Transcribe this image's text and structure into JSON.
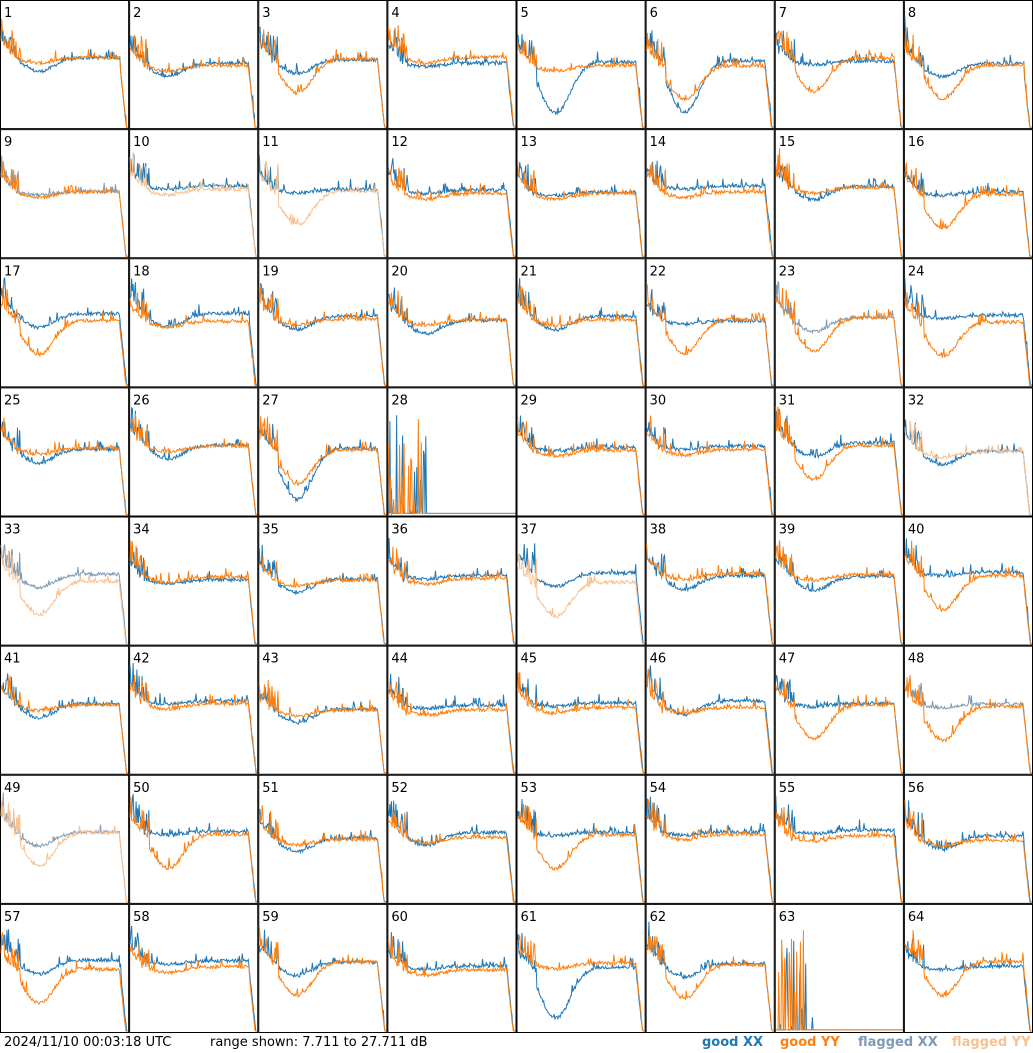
{
  "chart_data": {
    "type": "line",
    "layout": "8x8 small multiples",
    "panels": [
      "1",
      "2",
      "3",
      "4",
      "5",
      "6",
      "7",
      "8",
      "9",
      "10",
      "11",
      "12",
      "13",
      "14",
      "15",
      "16",
      "17",
      "18",
      "19",
      "20",
      "21",
      "22",
      "23",
      "24",
      "25",
      "26",
      "27",
      "28",
      "29",
      "30",
      "31",
      "32",
      "33",
      "34",
      "35",
      "36",
      "37",
      "38",
      "39",
      "40",
      "41",
      "42",
      "43",
      "44",
      "45",
      "46",
      "47",
      "48",
      "49",
      "50",
      "51",
      "52",
      "53",
      "54",
      "55",
      "56",
      "57",
      "58",
      "59",
      "60",
      "61",
      "62",
      "63",
      "64"
    ],
    "panel_status": {
      "flagged_xx": [
        "9",
        "23",
        "33",
        "48",
        "49"
      ],
      "flagged_yy": [
        "10",
        "11",
        "32",
        "33",
        "37",
        "49"
      ],
      "dead": [
        "28",
        "63"
      ],
      "low_x": [
        "5",
        "6",
        "61",
        "27"
      ]
    },
    "ylim_db": [
      7.711,
      27.711
    ],
    "series": [
      {
        "name": "good XX",
        "color": "#1f77b4"
      },
      {
        "name": "good YY",
        "color": "#ff7f0e"
      },
      {
        "name": "flagged XX",
        "color": "#7f9bb5"
      },
      {
        "name": "flagged YY",
        "color": "#f8c192"
      }
    ]
  },
  "footer": {
    "timestamp": "2024/11/10 00:03:18 UTC",
    "range_text": "range shown: 7.711 to 27.711 dB"
  },
  "legend": {
    "good_xx": "good XX",
    "good_yy": "good YY",
    "flagged_xx": "flagged XX",
    "flagged_yy": "flagged YY"
  }
}
